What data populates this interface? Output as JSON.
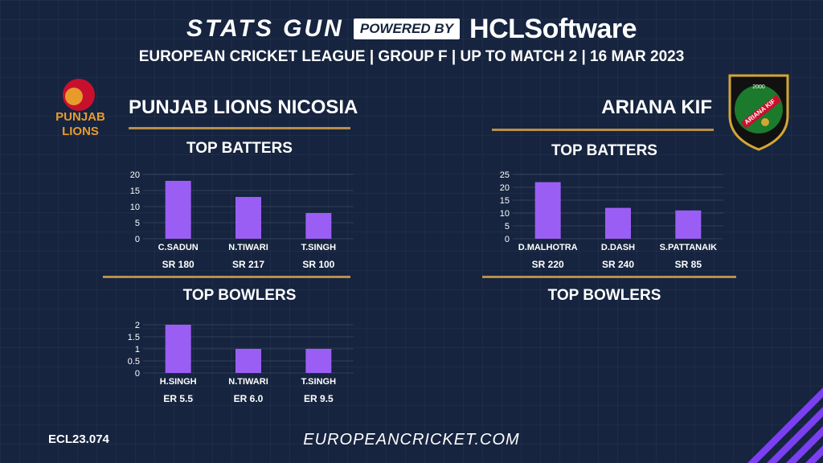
{
  "header": {
    "brand": "STATS GUN",
    "powered_by": "POWERED BY",
    "sponsor": "HCLSoftware",
    "subtitle": "EUROPEAN CRICKET LEAGUE | GROUP F | UP TO MATCH 2 | 16 MAR 2023"
  },
  "teams": {
    "left": {
      "name": "PUNJAB LIONS NICOSIA",
      "logo_text": [
        "PUNJAB",
        "LIONS"
      ],
      "batters_title": "TOP BATTERS",
      "bowlers_title": "TOP BOWLERS"
    },
    "right": {
      "name": "ARIANA KIF",
      "logo_text": [
        "2000",
        "ARIANA KIF"
      ],
      "batters_title": "TOP BATTERS",
      "bowlers_title": "TOP BOWLERS"
    }
  },
  "footer": {
    "code": "ECL23.074",
    "site": "EUROPEANCRICKET.COM"
  },
  "colors": {
    "background": "#16243f",
    "bar": "#9b5ef5",
    "rule": "#b98e4b"
  },
  "chart_data": [
    {
      "type": "bar",
      "team": "PUNJAB LIONS NICOSIA",
      "title": "TOP BATTERS",
      "categories": [
        "C.SADUN",
        "N.TIWARI",
        "T.SINGH"
      ],
      "values": [
        18,
        13,
        8
      ],
      "sublabels": [
        "SR 180",
        "SR 217",
        "SR 100"
      ],
      "yticks": [
        "0",
        "5",
        "10",
        "15",
        "20"
      ],
      "ylim": [
        0,
        20
      ],
      "grid": true
    },
    {
      "type": "bar",
      "team": "PUNJAB LIONS NICOSIA",
      "title": "TOP BOWLERS",
      "categories": [
        "H.SINGH",
        "N.TIWARI",
        "T.SINGH"
      ],
      "values": [
        2,
        1,
        1
      ],
      "sublabels": [
        "ER 5.5",
        "ER 6.0",
        "ER 9.5"
      ],
      "yticks": [
        "0",
        "0.5",
        "1",
        "1.5",
        "2"
      ],
      "ylim": [
        0,
        2
      ],
      "grid": true
    },
    {
      "type": "bar",
      "team": "ARIANA KIF",
      "title": "TOP BATTERS",
      "categories": [
        "D.MALHOTRA",
        "D.DASH",
        "S.PATTANAIK"
      ],
      "values": [
        22,
        12,
        11
      ],
      "sublabels": [
        "SR 220",
        "SR 240",
        "SR 85"
      ],
      "yticks": [
        "0",
        "5",
        "10",
        "15",
        "20",
        "25"
      ],
      "ylim": [
        0,
        25
      ],
      "grid": true
    }
  ]
}
